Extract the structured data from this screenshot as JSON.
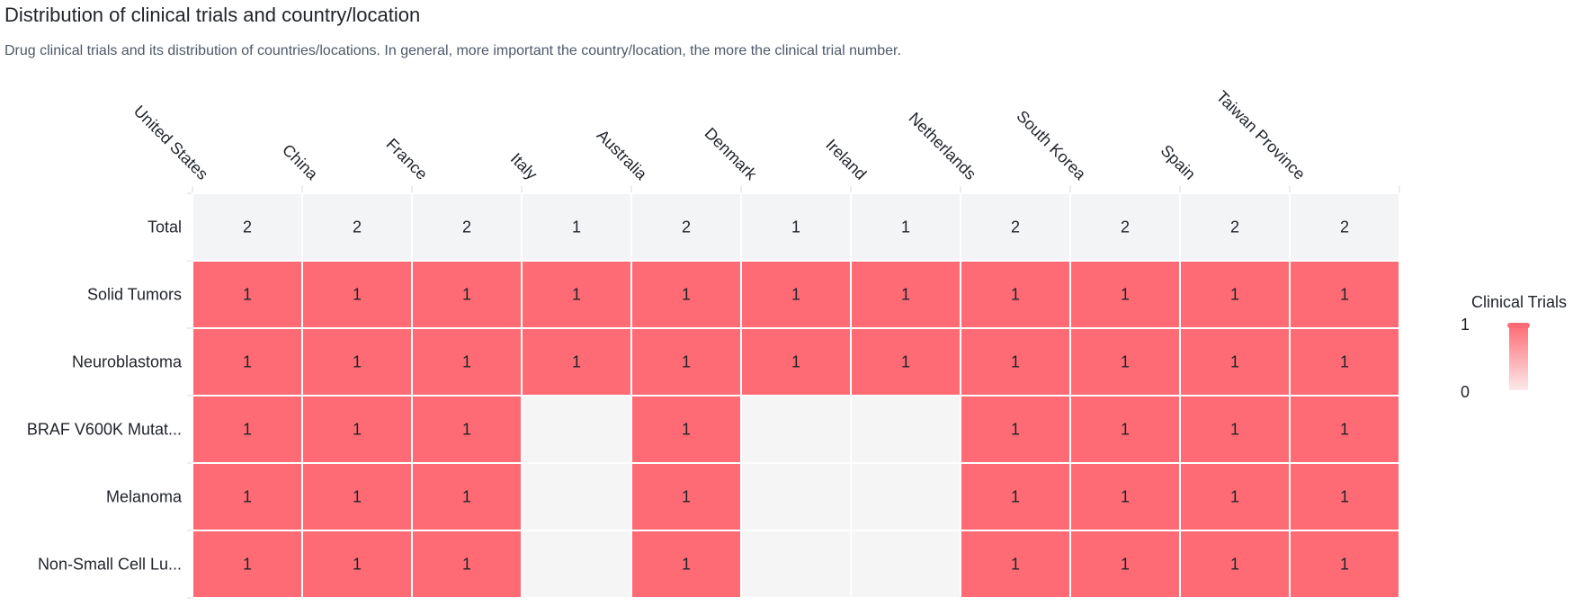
{
  "header": {
    "title": "Distribution of clinical trials and country/location",
    "subtitle": "Drug clinical trials and its distribution of countries/locations. In general, more important the country/location, the more the clinical trial number."
  },
  "chart_data": {
    "type": "heatmap",
    "x_categories": [
      "United States",
      "China",
      "France",
      "Italy",
      "Australia",
      "Denmark",
      "Ireland",
      "Netherlands",
      "South Korea",
      "Spain",
      "Taiwan Province"
    ],
    "total_row": {
      "label": "Total",
      "values": [
        2,
        2,
        2,
        1,
        2,
        1,
        1,
        2,
        2,
        2,
        2
      ]
    },
    "rows": [
      {
        "label": "Solid Tumors",
        "values": [
          1,
          1,
          1,
          1,
          1,
          1,
          1,
          1,
          1,
          1,
          1
        ]
      },
      {
        "label": "Neuroblastoma",
        "values": [
          1,
          1,
          1,
          1,
          1,
          1,
          1,
          1,
          1,
          1,
          1
        ]
      },
      {
        "label": "BRAF V600K Mutat...",
        "values": [
          1,
          1,
          1,
          null,
          1,
          null,
          null,
          1,
          1,
          1,
          1
        ]
      },
      {
        "label": "Melanoma",
        "values": [
          1,
          1,
          1,
          null,
          1,
          null,
          null,
          1,
          1,
          1,
          1
        ]
      },
      {
        "label": "Non-Small Cell Lu...",
        "values": [
          1,
          1,
          1,
          null,
          1,
          null,
          null,
          1,
          1,
          1,
          1
        ]
      }
    ],
    "legend": {
      "title": "Clinical Trials",
      "max_label": "1",
      "min_label": "0",
      "position": "right",
      "color_max": "#ff6b74",
      "color_min": "#fbe9ea"
    },
    "colors": {
      "filled": "#ff6b74",
      "total_bg": "#f3f4f6",
      "empty_bg": "#f5f5f6",
      "grid": "#ffffff"
    }
  }
}
